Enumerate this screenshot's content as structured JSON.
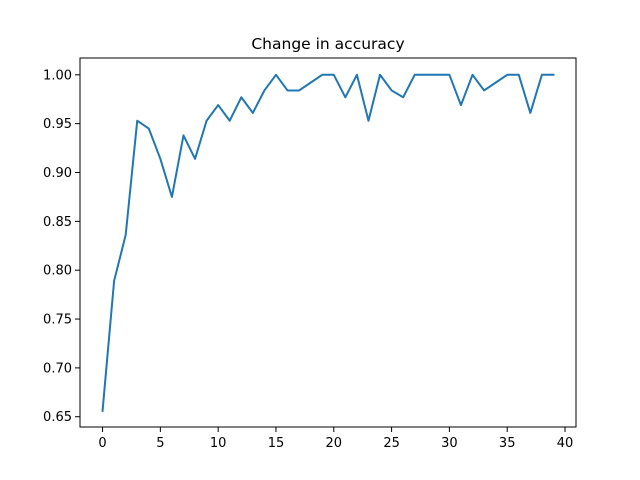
{
  "chart_data": {
    "type": "line",
    "title": "Change in accuracy",
    "xlabel": "",
    "ylabel": "",
    "xlim": [
      -1.95,
      40.95
    ],
    "ylim": [
      0.6395,
      1.0172
    ],
    "xticks": [
      0,
      5,
      10,
      15,
      20,
      25,
      30,
      35,
      40
    ],
    "xtick_labels": [
      "0",
      "5",
      "10",
      "15",
      "20",
      "25",
      "30",
      "35",
      "40"
    ],
    "yticks": [
      0.65,
      0.7,
      0.75,
      0.8,
      0.85,
      0.9,
      0.95,
      1.0
    ],
    "ytick_labels": [
      "0.65",
      "0.70",
      "0.75",
      "0.80",
      "0.85",
      "0.90",
      "0.95",
      "1.00"
    ],
    "grid": false,
    "legend": "none",
    "line_color": "#1f77b4",
    "series": [
      {
        "x": [
          0,
          1,
          2,
          3,
          4,
          5,
          6,
          7,
          8,
          9,
          10,
          11,
          12,
          13,
          14,
          15,
          16,
          17,
          18,
          19,
          20,
          21,
          22,
          23,
          24,
          25,
          26,
          27,
          28,
          29,
          30,
          31,
          32,
          33,
          34,
          35,
          36,
          37,
          38,
          39
        ],
        "values": [
          0.656,
          0.789,
          0.836,
          0.953,
          0.945,
          0.914,
          0.875,
          0.938,
          0.914,
          0.953,
          0.969,
          0.953,
          0.977,
          0.961,
          0.984,
          1.0,
          0.984,
          0.984,
          0.992,
          1.0,
          1.0,
          0.977,
          1.0,
          0.953,
          1.0,
          0.984,
          0.977,
          1.0,
          1.0,
          1.0,
          1.0,
          0.969,
          1.0,
          0.984,
          0.992,
          1.0,
          1.0,
          0.961,
          1.0,
          1.0
        ]
      }
    ]
  }
}
